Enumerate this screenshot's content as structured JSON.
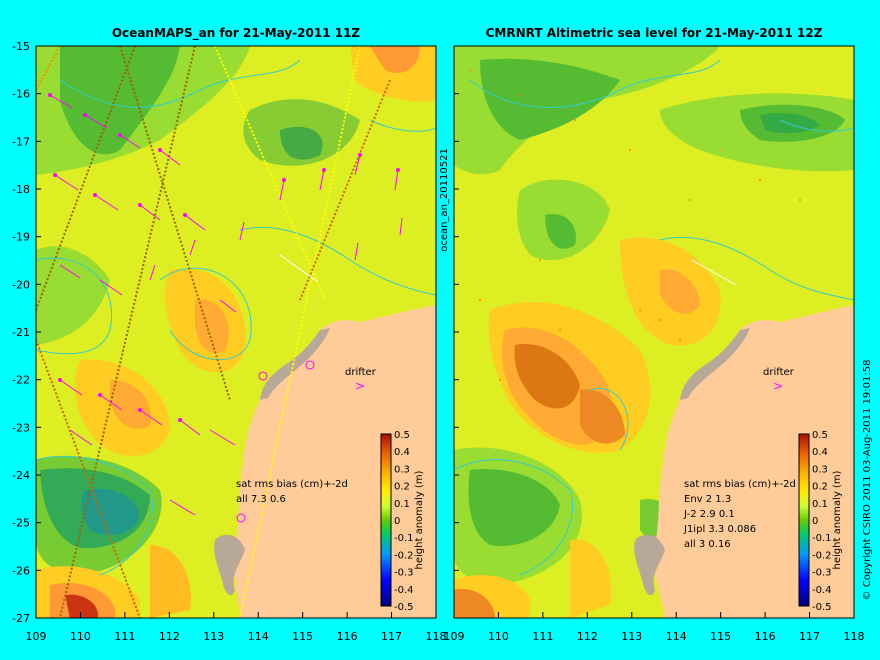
{
  "left_panel": {
    "title": "OceanMAPS_an for 21-May-2011 11Z",
    "stats_header": "sat rms bias (cm)+-2d",
    "stats": [
      "all 7.3 0.6"
    ],
    "drifter_label": "drifter"
  },
  "right_panel": {
    "title": "CMRNRT Altimetric sea level  for 21-May-2011 12Z",
    "stats_header": "sat rms bias (cm)+-2d",
    "stats": [
      "Env   2 1.3",
      "J-2   2.9 0.1",
      "J1ipl 3.3 0.086",
      "all 3 0.16"
    ],
    "drifter_label": "drifter"
  },
  "side_label": "ocean_an_20110521",
  "copyright": "© Copyright CSIRO 2011  03-Aug-2011 19:01:58",
  "x_ticks": [
    "109",
    "110",
    "111",
    "112",
    "113",
    "114",
    "115",
    "116",
    "117",
    "118"
  ],
  "y_ticks": [
    "-15",
    "-16",
    "-17",
    "-18",
    "-19",
    "-20",
    "-21",
    "-22",
    "-23",
    "-24",
    "-25",
    "-26",
    "-27"
  ],
  "colorbar": {
    "label": "height anomaly (m)",
    "ticks": [
      "0.5",
      "0.4",
      "0.3",
      "0.2",
      "0.1",
      "0",
      "-0.1",
      "-0.2",
      "-0.3",
      "-0.4",
      "-0.5"
    ]
  },
  "colors": {
    "background": "#00ffff",
    "land": "#ffcc99",
    "coast_shadow": "#b8a898",
    "contour": "#33cccc",
    "vector": "#ff00ff"
  }
}
